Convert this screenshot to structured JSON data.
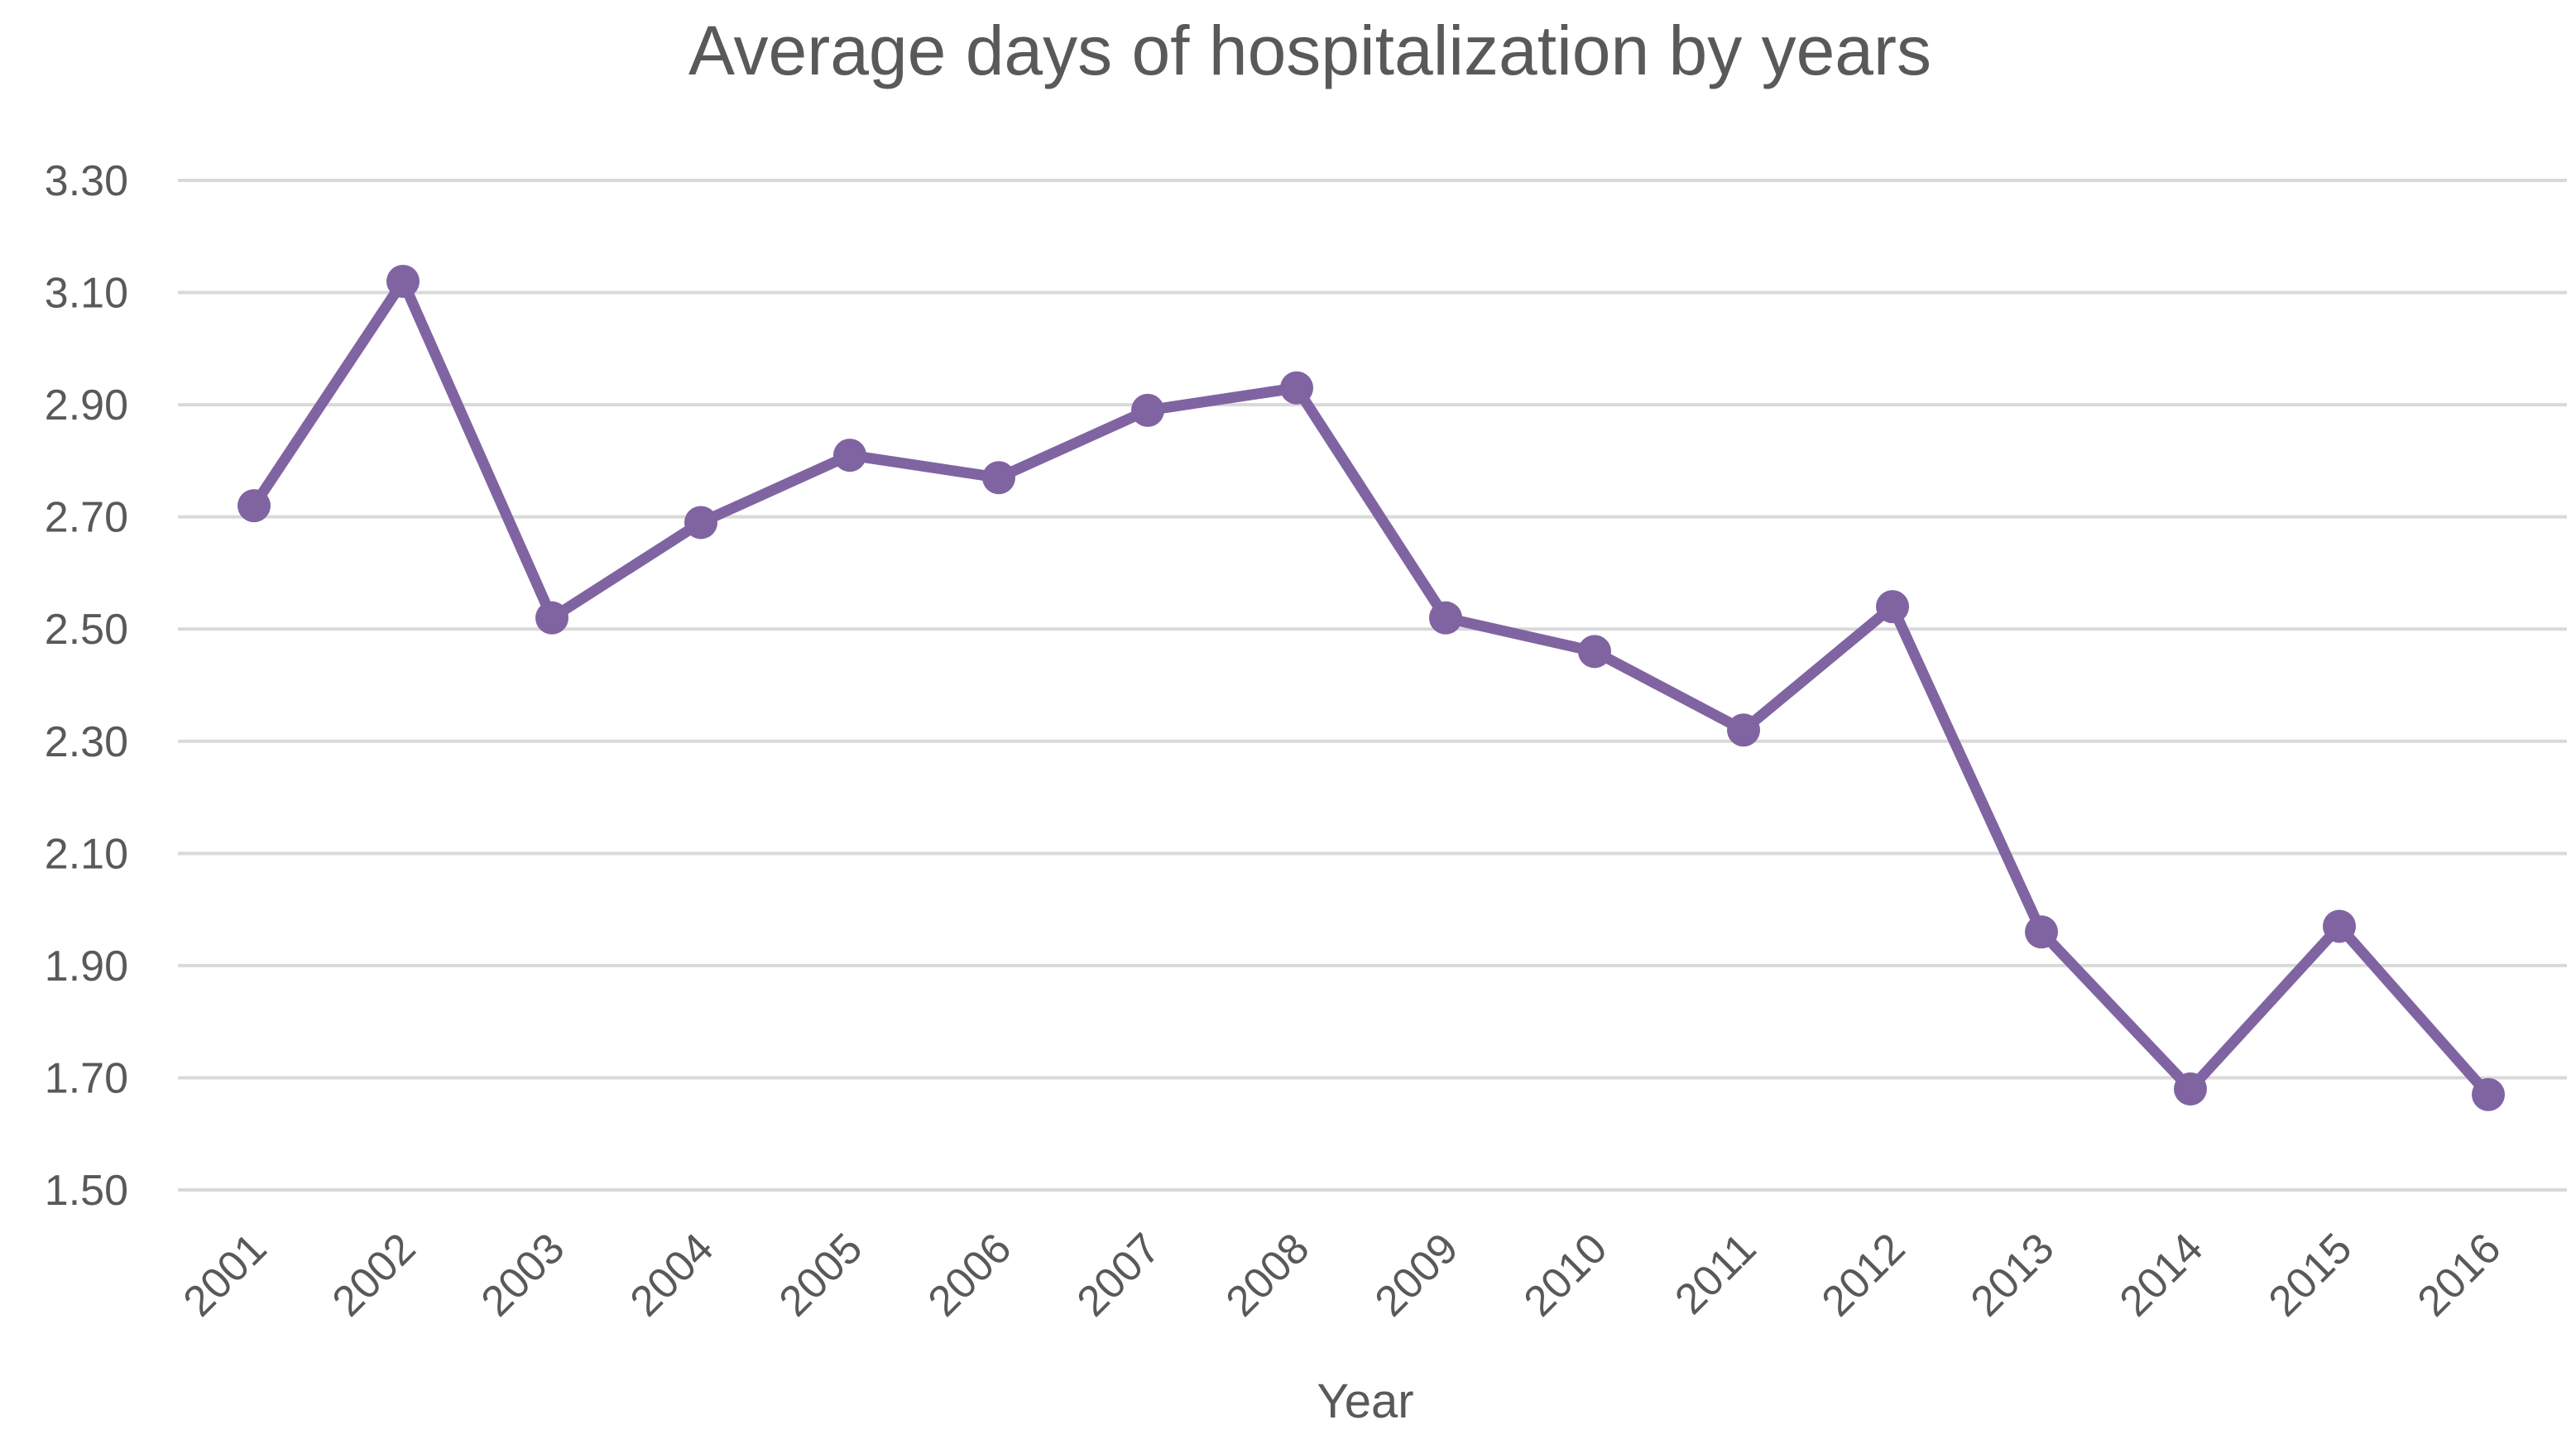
{
  "chart_data": {
    "type": "line",
    "title": "Average days of hospitalization by years",
    "xlabel": "Year",
    "ylabel": "",
    "ylim": [
      1.5,
      3.3
    ],
    "y_ticks": [
      "1.50",
      "1.70",
      "1.90",
      "2.10",
      "2.30",
      "2.50",
      "2.70",
      "2.90",
      "3.10",
      "3.30"
    ],
    "categories": [
      "2001",
      "2002",
      "2003",
      "2004",
      "2005",
      "2006",
      "2007",
      "2008",
      "2009",
      "2010",
      "2011",
      "2012",
      "2013",
      "2014",
      "2015",
      "2016"
    ],
    "series": [
      {
        "name": "Average days of hospitalization",
        "color": "#8064a2",
        "values": [
          2.72,
          3.12,
          2.52,
          2.69,
          2.81,
          2.77,
          2.89,
          2.93,
          2.52,
          2.46,
          2.32,
          2.54,
          1.96,
          1.68,
          1.97,
          1.67
        ]
      }
    ],
    "grid": true,
    "legend": "none"
  }
}
